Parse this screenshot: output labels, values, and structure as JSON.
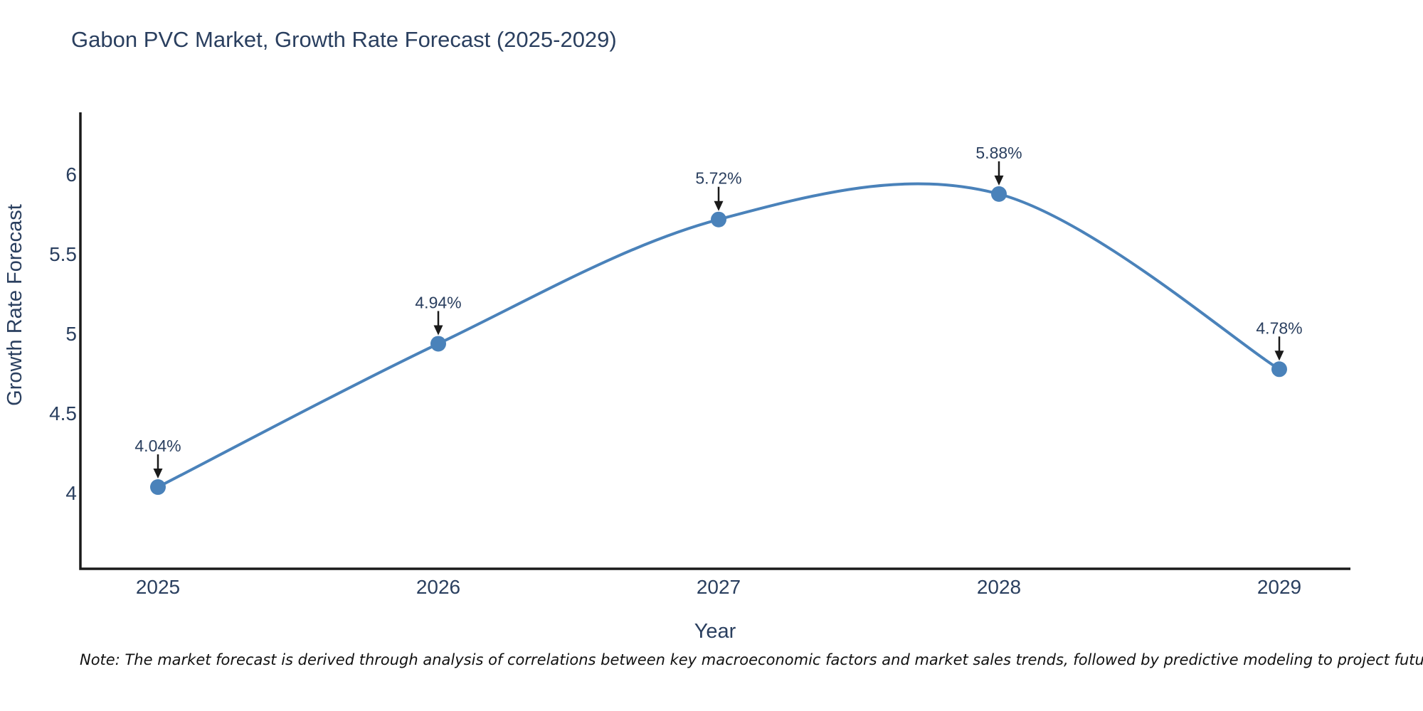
{
  "header": {
    "title": "Gabon PVC Market, Growth Rate Forecast (2025-2029)"
  },
  "note": {
    "text": "Note: The market forecast is derived through analysis of correlations between key macroeconomic factors and market sales trends, followed by predictive modeling to project future sales"
  },
  "chart_data": {
    "type": "line",
    "title": "Gabon PVC Market, Growth Rate Forecast (2025-2029)",
    "xlabel": "Year",
    "ylabel": "Growth Rate Forecast",
    "categories": [
      "2025",
      "2026",
      "2027",
      "2028",
      "2029"
    ],
    "values": [
      4.04,
      4.94,
      5.72,
      5.88,
      4.78
    ],
    "point_labels": [
      "4.04%",
      "4.94%",
      "5.72%",
      "5.88%",
      "4.78%"
    ],
    "y_ticks": [
      4,
      4.5,
      5,
      5.5,
      6
    ],
    "ylim": [
      3.53,
      6.39
    ],
    "xlim": [
      2024.72,
      2029.25
    ],
    "grid": false,
    "legend": "none",
    "line_shape": "spline",
    "annotations": "value labels with downward arrows above each point",
    "colors": {
      "line": "#4a82ba",
      "marker": "#4a82ba",
      "arrow": "#1a1a1a",
      "text": "#2a3f5f",
      "axis_line": "#1a1a1a",
      "note_text": "#111111",
      "background": "#ffffff"
    }
  }
}
